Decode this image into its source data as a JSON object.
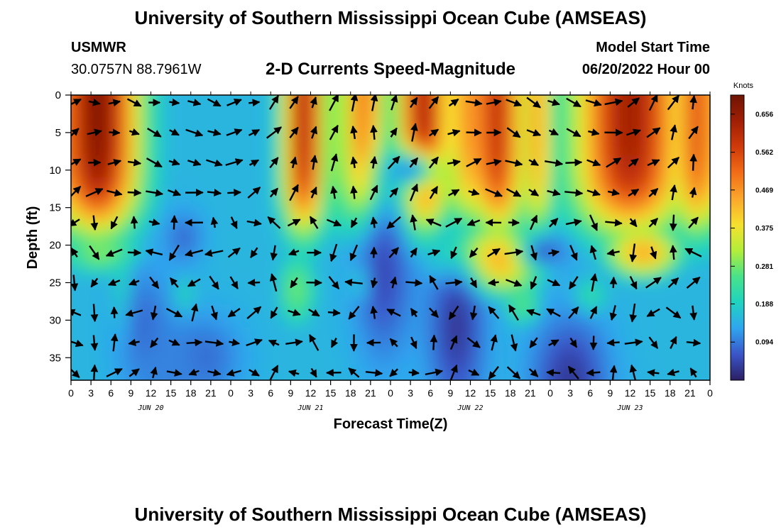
{
  "header": {
    "title": "University of Southern Mississippi Ocean Cube (AMSEAS)",
    "station": "USMWR",
    "location": "30.0757N  88.7961W",
    "subtitle": "2-D Currents Speed-Magnitude",
    "start_label": "Model Start Time",
    "start_value": "06/20/2022 Hour 00"
  },
  "footer": {
    "title": "University of Southern Mississippi Ocean Cube (AMSEAS)"
  },
  "chart_data": {
    "type": "heatmap",
    "xlabel": "Forecast Time(Z)",
    "ylabel": "Depth (ft)",
    "x_ticks": [
      "0",
      "3",
      "6",
      "9",
      "12",
      "15",
      "18",
      "21",
      "0",
      "3",
      "6",
      "9",
      "12",
      "15",
      "18",
      "21",
      "0",
      "3",
      "6",
      "9",
      "12",
      "15",
      "18",
      "21",
      "0",
      "3",
      "6",
      "9",
      "12",
      "15",
      "18",
      "21",
      "0"
    ],
    "x_range_hours": [
      0,
      96
    ],
    "day_labels": [
      {
        "label": "JUN 20",
        "hour": 12
      },
      {
        "label": "JUN 21",
        "hour": 36
      },
      {
        "label": "JUN 22",
        "hour": 60
      },
      {
        "label": "JUN 23",
        "hour": 84
      }
    ],
    "y_ticks": [
      "0",
      "5",
      "10",
      "15",
      "20",
      "25",
      "30",
      "35"
    ],
    "y_range": [
      38,
      0
    ],
    "colorbar": {
      "unit": "Knots",
      "ticks": [
        "0.656",
        "0.562",
        "0.469",
        "0.375",
        "0.281",
        "0.188",
        "0.094"
      ],
      "range": [
        0.0,
        0.703
      ],
      "colors": [
        "#2b1f63",
        "#3a55c8",
        "#2fa5ef",
        "#20d3c0",
        "#48e28a",
        "#b2ee3a",
        "#f6e02e",
        "#fba72c",
        "#f26d17",
        "#cf3a0a",
        "#a01f05",
        "#6e1403"
      ]
    },
    "vectors_shown": true
  }
}
